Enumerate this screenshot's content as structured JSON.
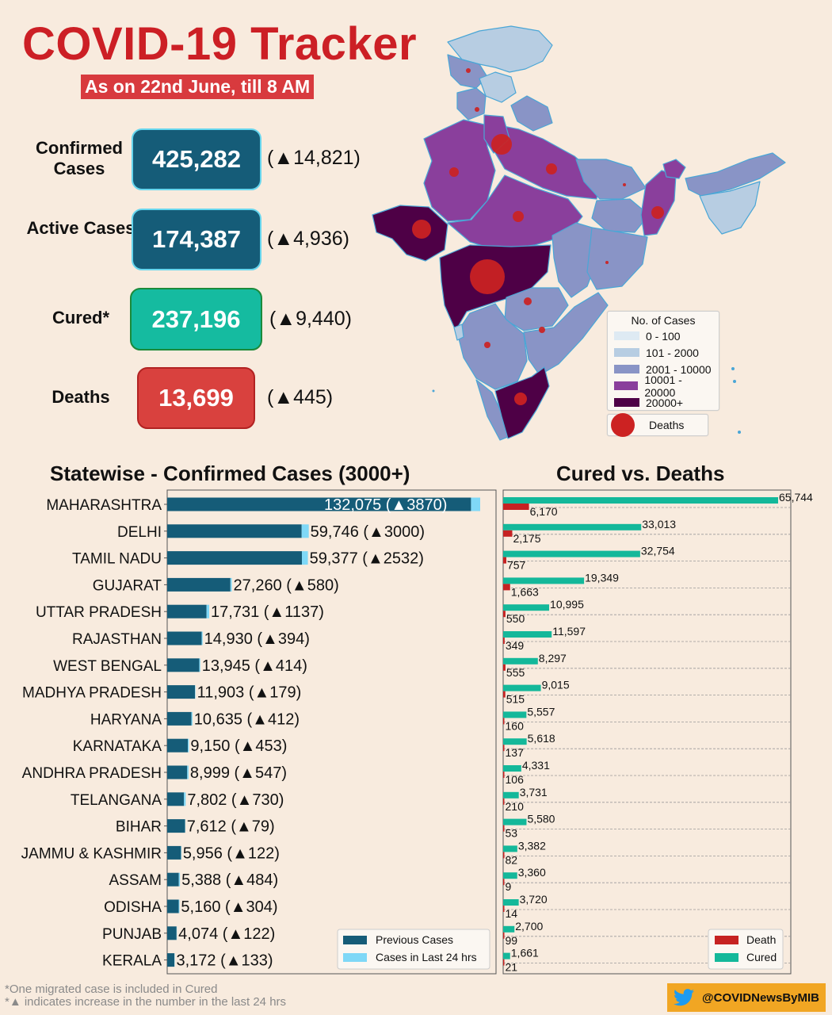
{
  "header": {
    "title": "COVID-19 Tracker",
    "date": "As on 22nd June, till 8 AM"
  },
  "stats": {
    "confirmed": {
      "label": "Confirmed Cases",
      "value": "425,282",
      "delta": "(▲14,821)"
    },
    "active": {
      "label": "Active Cases",
      "value": "174,387",
      "delta": "(▲4,936)"
    },
    "cured": {
      "label": "Cured*",
      "value": "237,196",
      "delta": "(▲9,440)"
    },
    "deaths": {
      "label": "Deaths",
      "value": "13,699",
      "delta": "(▲445)"
    }
  },
  "map": {
    "legend_title": "No. of Cases",
    "legend_items": [
      {
        "label": "0 - 100",
        "color": "#deeaf3"
      },
      {
        "label": "101 - 2000",
        "color": "#b7cde2"
      },
      {
        "label": "2001 - 10000",
        "color": "#8994c6"
      },
      {
        "label": "10001 - 20000",
        "color": "#8a3f9c"
      },
      {
        "label": "20000+",
        "color": "#4e0046"
      }
    ],
    "deaths_legend": "Deaths",
    "deaths_color": "#cc2222"
  },
  "chart_data": [
    {
      "type": "bar",
      "orientation": "horizontal",
      "stacked": true,
      "title": "Statewise - Confirmed Cases (3000+)",
      "categories": [
        "MAHARASHTRA",
        "DELHI",
        "TAMIL NADU",
        "GUJARAT",
        "UTTAR PRADESH",
        "RAJASTHAN",
        "WEST BENGAL",
        "MADHYA PRADESH",
        "HARYANA",
        "KARNATAKA",
        "ANDHRA PRADESH",
        "TELANGANA",
        "BIHAR",
        "JAMMU & KASHMIR",
        "ASSAM",
        "ODISHA",
        "PUNJAB",
        "KERALA"
      ],
      "series": [
        {
          "name": "Previous Cases",
          "color": "#155c78",
          "values": [
            128205,
            56746,
            56845,
            26680,
            16594,
            14536,
            13531,
            11724,
            10223,
            8697,
            8452,
            7072,
            7533,
            5834,
            4904,
            4856,
            3952,
            3039
          ]
        },
        {
          "name": "Cases in Last 24 hrs",
          "color": "#7fd8f7",
          "values": [
            3870,
            3000,
            2532,
            580,
            1137,
            394,
            414,
            179,
            412,
            453,
            547,
            730,
            79,
            122,
            484,
            304,
            122,
            133
          ]
        }
      ],
      "totals": [
        132075,
        59746,
        59377,
        27260,
        17731,
        14930,
        13945,
        11903,
        10635,
        9150,
        8999,
        7802,
        7612,
        5956,
        5388,
        5160,
        4074,
        3172
      ],
      "labels": [
        "132,075 (▲3870)",
        "59,746 (▲3000)",
        "59,377 (▲2532)",
        "27,260 (▲580)",
        "17,731 (▲1137)",
        "14,930 (▲394)",
        "13,945 (▲414)",
        "11,903 (▲179)",
        "10,635 (▲412)",
        "9,150 (▲453)",
        "8,999 (▲547)",
        "7,802 (▲730)",
        "7,612 (▲79)",
        "5,956 (▲122)",
        "5,388 (▲484)",
        "5,160 (▲304)",
        "4,074 (▲122)",
        "3,172 (▲133)"
      ],
      "legend_position": "bottom-right",
      "xlim": [
        0,
        140000
      ]
    },
    {
      "type": "bar",
      "orientation": "horizontal",
      "title": "Cured vs. Deaths",
      "categories": [
        "MAHARASHTRA",
        "DELHI",
        "TAMIL NADU",
        "GUJARAT",
        "UTTAR PRADESH",
        "RAJASTHAN",
        "WEST BENGAL",
        "MADHYA PRADESH",
        "HARYANA",
        "KARNATAKA",
        "ANDHRA PRADESH",
        "TELANGANA",
        "BIHAR",
        "JAMMU & KASHMIR",
        "ASSAM",
        "ODISHA",
        "PUNJAB",
        "KERALA"
      ],
      "series": [
        {
          "name": "Cured",
          "color": "#14b89a",
          "values": [
            65744,
            33013,
            32754,
            19349,
            10995,
            11597,
            8297,
            9015,
            5557,
            5618,
            4331,
            3731,
            5580,
            3382,
            3360,
            3720,
            2700,
            1661
          ],
          "labels": [
            "65,744",
            "33,013",
            "32,754",
            "19,349",
            "10,995",
            "11,597",
            "8,297",
            "9,015",
            "5,557",
            "5,618",
            "4,331",
            "3,731",
            "5,580",
            "3,382",
            "3,360",
            "3,720",
            "2,700",
            "1,661"
          ]
        },
        {
          "name": "Death",
          "color": "#c62222",
          "values": [
            6170,
            2175,
            757,
            1663,
            550,
            349,
            555,
            515,
            160,
            137,
            106,
            210,
            53,
            82,
            9,
            14,
            99,
            21
          ],
          "labels": [
            "6,170",
            "2,175",
            "757",
            "1,663",
            "550",
            "349",
            "555",
            "515",
            "160",
            "137",
            "106",
            "210",
            "53",
            "82",
            "9",
            "14",
            "99",
            "21"
          ]
        }
      ],
      "legend": [
        "Death",
        "Cured"
      ],
      "legend_position": "bottom-right",
      "grid": true,
      "xlim": [
        0,
        67500
      ]
    }
  ],
  "footer": {
    "note_1": "*One migrated case is included in Cured",
    "note_2": "*▲ indicates increase in the number in the last 24 hrs",
    "twitter": "@COVIDNewsByMIB"
  }
}
